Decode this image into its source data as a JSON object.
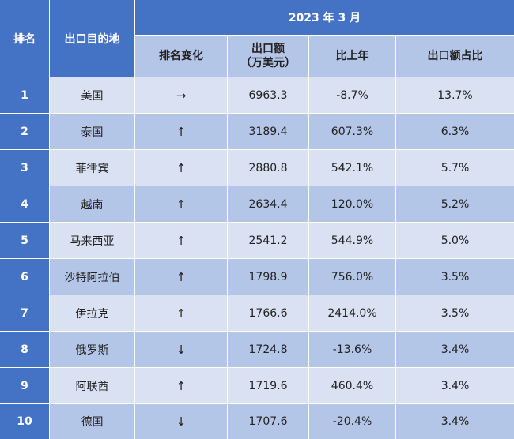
{
  "header": {
    "rank": "排名",
    "destination": "出口目的地",
    "period": "2023 年 3 月",
    "rank_change": "排名变化",
    "export_amount_line1": "出口额",
    "export_amount_line2": "（万美元）",
    "yoy": "比上年",
    "share": "出口额占比"
  },
  "rows": [
    {
      "rank": "1",
      "destination": "美国",
      "change": "→",
      "amount": "6963.3",
      "yoy": "-8.7%",
      "share": "13.7%"
    },
    {
      "rank": "2",
      "destination": "泰国",
      "change": "↑",
      "amount": "3189.4",
      "yoy": "607.3%",
      "share": "6.3%"
    },
    {
      "rank": "3",
      "destination": "菲律宾",
      "change": "↑",
      "amount": "2880.8",
      "yoy": "542.1%",
      "share": "5.7%"
    },
    {
      "rank": "4",
      "destination": "越南",
      "change": "↑",
      "amount": "2634.4",
      "yoy": "120.0%",
      "share": "5.2%"
    },
    {
      "rank": "5",
      "destination": "马来西亚",
      "change": "↑",
      "amount": "2541.2",
      "yoy": "544.9%",
      "share": "5.0%"
    },
    {
      "rank": "6",
      "destination": "沙特阿拉伯",
      "change": "↑",
      "amount": "1798.9",
      "yoy": "756.0%",
      "share": "3.5%"
    },
    {
      "rank": "7",
      "destination": "伊拉克",
      "change": "↑",
      "amount": "1766.6",
      "yoy": "2414.0%",
      "share": "3.5%"
    },
    {
      "rank": "8",
      "destination": "俄罗斯",
      "change": "↓",
      "amount": "1724.8",
      "yoy": "-13.6%",
      "share": "3.4%"
    },
    {
      "rank": "9",
      "destination": "阿联酋",
      "change": "↑",
      "amount": "1719.6",
      "yoy": "460.4%",
      "share": "3.4%"
    },
    {
      "rank": "10",
      "destination": "德国",
      "change": "↓",
      "amount": "1707.6",
      "yoy": "-20.4%",
      "share": "3.4%"
    }
  ]
}
